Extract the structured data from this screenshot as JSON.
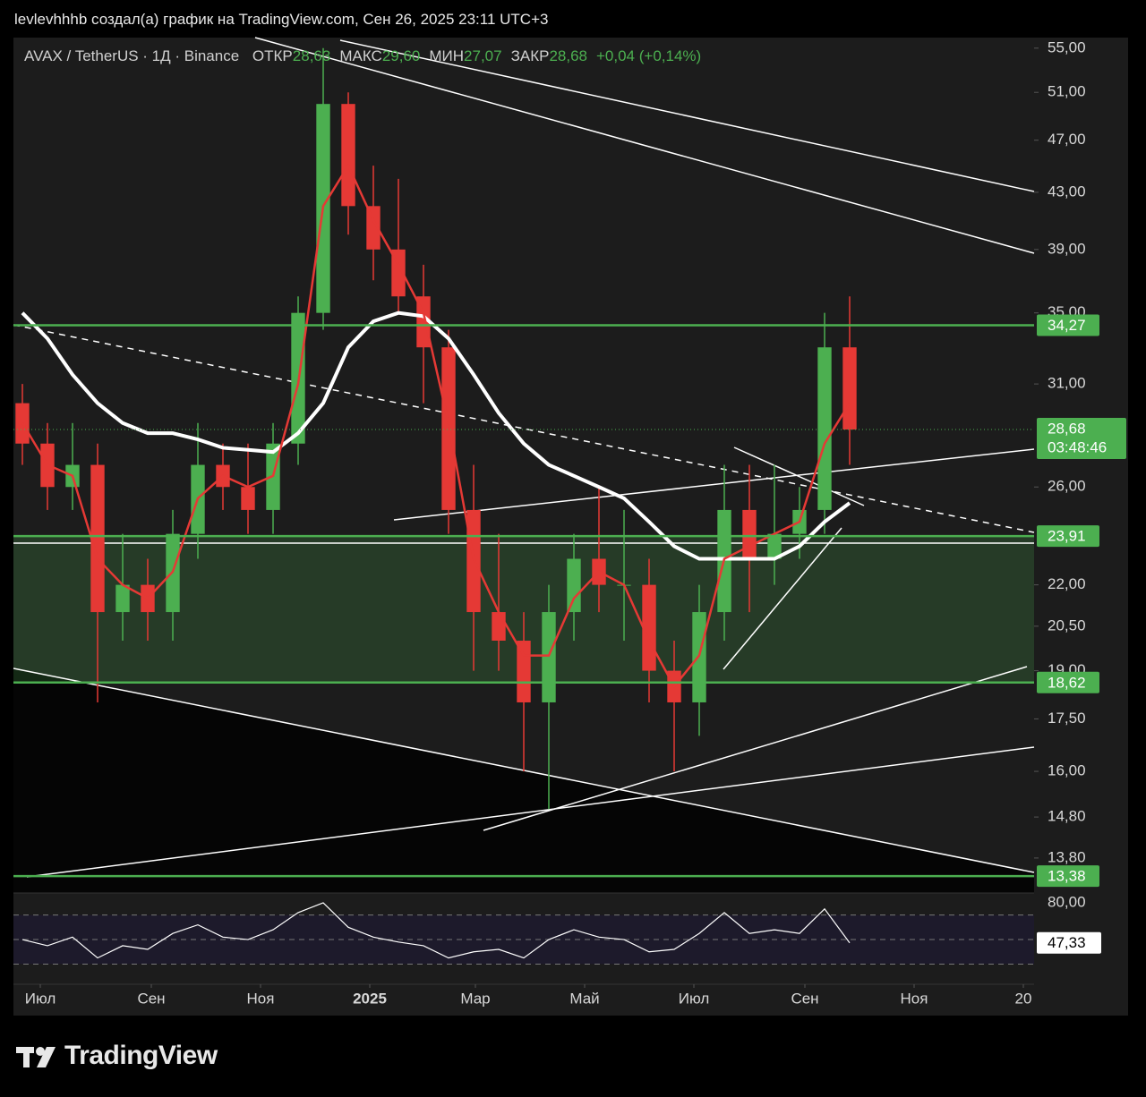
{
  "header": {
    "attribution": "levlevhhhb создал(а) график на TradingView.com, Сен 26, 2025 23:11 UTC+3"
  },
  "chart_data": {
    "type": "candlestick",
    "symbol": "AVAX / TetherUS · 1Д · Binance",
    "stats": [
      {
        "name": "ОТКР",
        "value": 28.63,
        "label": "28,63"
      },
      {
        "name": "МАКС",
        "value": 29.6,
        "label": "29,60"
      },
      {
        "name": "МИН",
        "value": 27.07,
        "label": "27,07"
      },
      {
        "name": "ЗАКР",
        "value": 28.68,
        "label": "28,68"
      }
    ],
    "change": "+0,04 (+0,14%)",
    "up_color": "#4caf50",
    "down_color": "#e53935",
    "x": [
      -10,
      4,
      18,
      32,
      46,
      60,
      74,
      88,
      102,
      116,
      130,
      144,
      158,
      172,
      186,
      200,
      214,
      228,
      242,
      256,
      270,
      284,
      298,
      312,
      326,
      340,
      354,
      368,
      382,
      396,
      410,
      424,
      438,
      452
    ],
    "open": [
      30,
      28,
      26,
      27,
      21,
      22,
      21,
      24,
      27,
      26,
      25,
      28,
      35,
      50,
      42,
      39,
      36,
      33,
      25,
      21,
      20,
      18,
      21,
      23,
      22,
      22,
      19,
      18,
      21,
      25,
      23,
      24,
      25,
      33
    ],
    "high": [
      31,
      29,
      29,
      28,
      24,
      23,
      25,
      29,
      28,
      28,
      29,
      36,
      55,
      51,
      45,
      44,
      38,
      34,
      27,
      24,
      21,
      22,
      24,
      26,
      25,
      23,
      20,
      22,
      27,
      27,
      27,
      26,
      35,
      36
    ],
    "low": [
      27,
      25,
      25,
      18,
      20,
      20,
      20,
      23,
      25,
      24,
      24,
      27,
      34,
      40,
      37,
      35,
      30,
      24,
      19,
      19,
      16,
      15,
      20,
      21,
      20,
      18,
      16,
      17,
      20,
      21,
      22,
      23,
      24,
      27
    ],
    "close": [
      28,
      26,
      27,
      21,
      22,
      21,
      24,
      27,
      26,
      25,
      28,
      35,
      50,
      42,
      39,
      36,
      33,
      25,
      21,
      20,
      18,
      21,
      23,
      22,
      22,
      19,
      18,
      21,
      25,
      23,
      24,
      25,
      33,
      28.68
    ],
    "lines": [
      {
        "color": "#ffffff",
        "width": 4,
        "values": [
          35,
          33.5,
          31.5,
          30,
          29,
          28.5,
          28.5,
          28.2,
          27.8,
          27.7,
          27.6,
          28.5,
          30,
          33,
          34.5,
          35,
          34.8,
          33.5,
          31.5,
          29.5,
          28,
          27,
          26.5,
          26,
          25.5,
          24.5,
          23.5,
          23,
          23,
          23,
          23,
          23.5,
          24.5,
          25.3
        ]
      },
      {
        "color": "#e53935",
        "width": 2.5,
        "values": [
          29,
          27,
          26.5,
          23,
          22,
          21.5,
          22.5,
          25.5,
          26.5,
          26,
          26.5,
          31,
          42,
          45,
          41,
          38,
          35,
          29,
          23,
          21,
          19.5,
          19.5,
          21.5,
          22.5,
          22,
          20,
          18.5,
          19.5,
          23,
          23.5,
          24,
          24.5,
          28,
          30
        ]
      }
    ],
    "xlim": [
      -15,
      555
    ],
    "xticks": [
      {
        "value": 0,
        "label": "Июл"
      },
      {
        "value": 62,
        "label": "Сен"
      },
      {
        "value": 123,
        "label": "Ноя"
      },
      {
        "value": 184,
        "label": "2025"
      },
      {
        "value": 243,
        "label": "Мар"
      },
      {
        "value": 304,
        "label": "Май"
      },
      {
        "value": 365,
        "label": "Июл"
      },
      {
        "value": 427,
        "label": "Сен"
      },
      {
        "value": 488,
        "label": "Ноя"
      },
      {
        "value": 549,
        "label": "20"
      }
    ],
    "ylim": [
      13,
      56
    ],
    "log": true,
    "yticks": [
      {
        "value": 55,
        "label": "55,00"
      },
      {
        "value": 51,
        "label": "51,00"
      },
      {
        "value": 47,
        "label": "47,00"
      },
      {
        "value": 43,
        "label": "43,00"
      },
      {
        "value": 39,
        "label": "39,00"
      },
      {
        "value": 35,
        "label": "35,00"
      },
      {
        "value": 31,
        "label": "31,00"
      },
      {
        "value": 26,
        "label": "26,00"
      },
      {
        "value": 22,
        "label": "22,00"
      },
      {
        "value": 20.5,
        "label": "20,50"
      },
      {
        "value": 19,
        "label": "19,00"
      },
      {
        "value": 17.5,
        "label": "17,50"
      },
      {
        "value": 16,
        "label": "16,00"
      },
      {
        "value": 14.8,
        "label": "14,80"
      },
      {
        "value": 13.8,
        "label": "13,80"
      }
    ],
    "levels": [
      {
        "value": 34.27,
        "label": "34,27"
      },
      {
        "value": 23.91,
        "label": "23,91"
      },
      {
        "value": 18.62,
        "label": "18,62"
      },
      {
        "value": 13.38,
        "label": "13,38"
      }
    ],
    "level_color": "#4caf50",
    "zone": {
      "from": 18.62,
      "to": 23.91,
      "color": "rgba(76,175,80,0.22)"
    },
    "current": {
      "value": 28.68,
      "label": "28,68",
      "countdown": "03:48:46"
    },
    "rsi": {
      "values": [
        50,
        45,
        52,
        35,
        45,
        42,
        55,
        62,
        52,
        50,
        58,
        72,
        80,
        60,
        52,
        48,
        45,
        35,
        40,
        42,
        35,
        50,
        58,
        52,
        50,
        40,
        42,
        55,
        72,
        55,
        58,
        55,
        75,
        47.33
      ],
      "ylim": [
        15,
        88
      ],
      "yticks": [
        {
          "value": 80,
          "label": "80,00"
        }
      ],
      "bands": [
        70,
        50,
        30
      ],
      "last": {
        "value": 47.33,
        "label": "47,33"
      }
    }
  },
  "logo": "TradingView"
}
